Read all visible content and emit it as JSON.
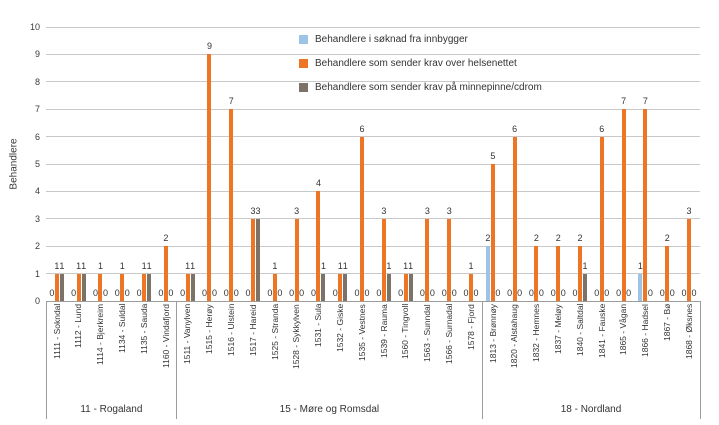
{
  "chart_data": {
    "type": "bar",
    "title": "",
    "xlabel": "",
    "ylabel": "Behandlere",
    "ylim": [
      0,
      10
    ],
    "yticks": [
      0,
      1,
      2,
      3,
      4,
      5,
      6,
      7,
      8,
      9,
      10
    ],
    "grid": true,
    "legend_position": "top-center",
    "groups": [
      {
        "label": "11 - Rogaland",
        "count": 6
      },
      {
        "label": "15 - Møre og Romsdal",
        "count": 14
      },
      {
        "label": "18 - Nordland",
        "count": 10
      }
    ],
    "categories": [
      "1111 - Sokndal",
      "1112 - Lund",
      "1114 - Bjerkreim",
      "1134 - Suldal",
      "1135 - Sauda",
      "1160 - Vindafjord",
      "1511 - Vanylven",
      "1515 - Herøy",
      "1516 - Ulstein",
      "1517 - Hareid",
      "1525 - Stranda",
      "1528 - Sykkylven",
      "1531 - Sula",
      "1532 - Giske",
      "1535 - Vestnes",
      "1539 - Rauma",
      "1560 - Tingvoll",
      "1563 - Sunndal",
      "1566 - Surnadal",
      "1578 - Fjord",
      "1813 - Brønnøy",
      "1820 - Alstahaug",
      "1832 - Hemnes",
      "1837 - Meløy",
      "1840 - Saltdal",
      "1841 - Fauske",
      "1865 - Vågan",
      "1866 - Hadsel",
      "1867 - Bø",
      "1868 - Øksnes"
    ],
    "series": [
      {
        "name": "Behandlere i søknad fra innbygger",
        "color": "#9dc3e6",
        "values": [
          0,
          0,
          0,
          0,
          0,
          0,
          0,
          0,
          0,
          0,
          0,
          0,
          0,
          0,
          0,
          0,
          0,
          0,
          0,
          0,
          2,
          0,
          0,
          0,
          0,
          0,
          0,
          1,
          0,
          0
        ]
      },
      {
        "name": "Behandlere som sender krav over helsenettet",
        "color": "#ed7524",
        "values": [
          1,
          1,
          1,
          1,
          1,
          2,
          1,
          9,
          7,
          3,
          1,
          3,
          4,
          1,
          6,
          3,
          1,
          3,
          3,
          1,
          5,
          6,
          2,
          2,
          2,
          6,
          7,
          7,
          2,
          3
        ]
      },
      {
        "name": "Behandlere som sender krav på minnepinne/cdrom",
        "color": "#7d7268",
        "values": [
          1,
          1,
          0,
          0,
          1,
          0,
          1,
          0,
          0,
          3,
          0,
          0,
          1,
          1,
          0,
          1,
          1,
          0,
          0,
          0,
          0,
          0,
          0,
          0,
          1,
          0,
          0,
          0,
          0,
          0
        ]
      }
    ]
  }
}
